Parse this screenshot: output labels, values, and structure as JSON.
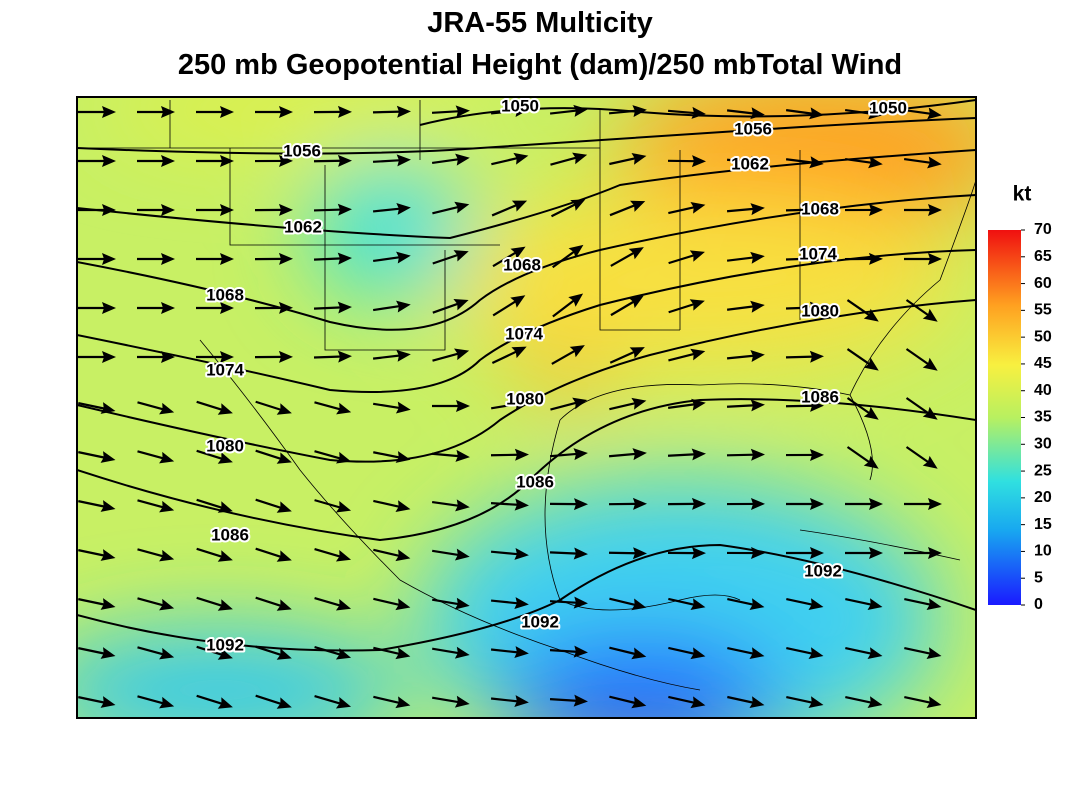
{
  "title": [
    "JRA-55 Multicity",
    "250 mb Geopotential Height (dam)/250 mbTotal Wind"
  ],
  "contour_labels": [
    1050,
    1050,
    1056,
    1056,
    1062,
    1062,
    1068,
    1068,
    1068,
    1074,
    1074,
    1074,
    1080,
    1080,
    1080,
    1086,
    1086,
    1086,
    1092,
    1092,
    1092
  ],
  "colorbar": {
    "label": "kt",
    "ticks": [
      0,
      5,
      10,
      15,
      20,
      25,
      30,
      35,
      40,
      45,
      50,
      55,
      60,
      65,
      70
    ],
    "range": [
      0,
      70
    ]
  }
}
